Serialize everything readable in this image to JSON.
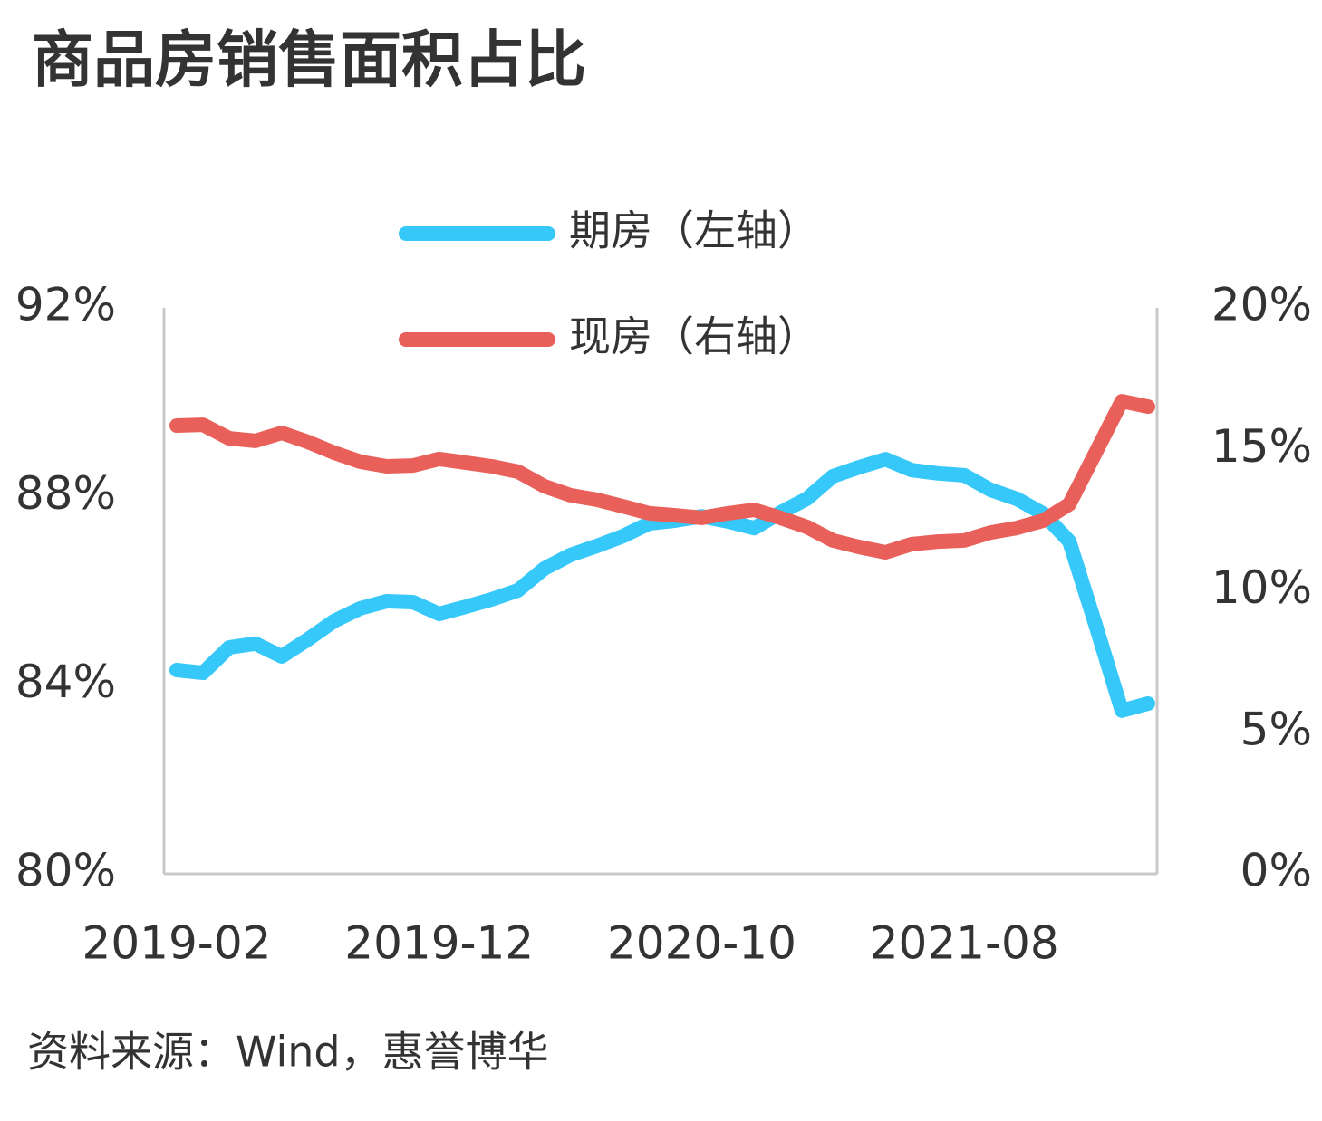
{
  "chart_data": {
    "type": "line",
    "title": "商品房销售面积占比",
    "source": "资料来源：Wind，惠誉博华",
    "categories": [
      "2019-02",
      null,
      null,
      null,
      null,
      null,
      null,
      null,
      null,
      null,
      "2019-12",
      null,
      null,
      null,
      null,
      null,
      null,
      null,
      null,
      null,
      "2020-10",
      null,
      null,
      null,
      null,
      null,
      null,
      null,
      null,
      null,
      "2021-08",
      null,
      null,
      null,
      null,
      null,
      null,
      null
    ],
    "series": [
      {
        "name": "期房（左轴）",
        "color": "#35c8f9",
        "axis": "y",
        "values": [
          84.32,
          84.26,
          84.8,
          84.88,
          84.61,
          84.97,
          85.36,
          85.63,
          85.78,
          85.76,
          85.51,
          85.66,
          85.82,
          86.01,
          86.47,
          86.76,
          86.95,
          87.16,
          87.43,
          87.49,
          87.58,
          87.47,
          87.33,
          87.66,
          87.95,
          88.43,
          88.62,
          88.79,
          88.56,
          88.49,
          88.45,
          88.14,
          87.95,
          87.64,
          87.05,
          85.28,
          83.46,
          83.61
        ]
      },
      {
        "name": "现房（右轴）",
        "color": "#e9605a",
        "axis": "y2",
        "values": [
          15.84,
          15.87,
          15.39,
          15.3,
          15.58,
          15.26,
          14.88,
          14.56,
          14.4,
          14.43,
          14.66,
          14.53,
          14.4,
          14.21,
          13.7,
          13.38,
          13.22,
          12.99,
          12.74,
          12.67,
          12.58,
          12.74,
          12.86,
          12.58,
          12.26,
          11.78,
          11.55,
          11.36,
          11.65,
          11.74,
          11.78,
          12.06,
          12.22,
          12.48,
          13.06,
          14.88,
          16.7,
          16.51
        ]
      }
    ],
    "ylim": [
      80,
      92
    ],
    "yticks": [
      {
        "value": 80,
        "label": "80%"
      },
      {
        "value": 84,
        "label": "84%"
      },
      {
        "value": 88,
        "label": "88%"
      },
      {
        "value": 92,
        "label": "92%"
      }
    ],
    "y2lim": [
      0,
      20
    ],
    "y2ticks": [
      {
        "value": 0,
        "label": "0%"
      },
      {
        "value": 5,
        "label": "5%"
      },
      {
        "value": 10,
        "label": "10%"
      },
      {
        "value": 15,
        "label": "15%"
      },
      {
        "value": 20,
        "label": "20%"
      }
    ]
  }
}
